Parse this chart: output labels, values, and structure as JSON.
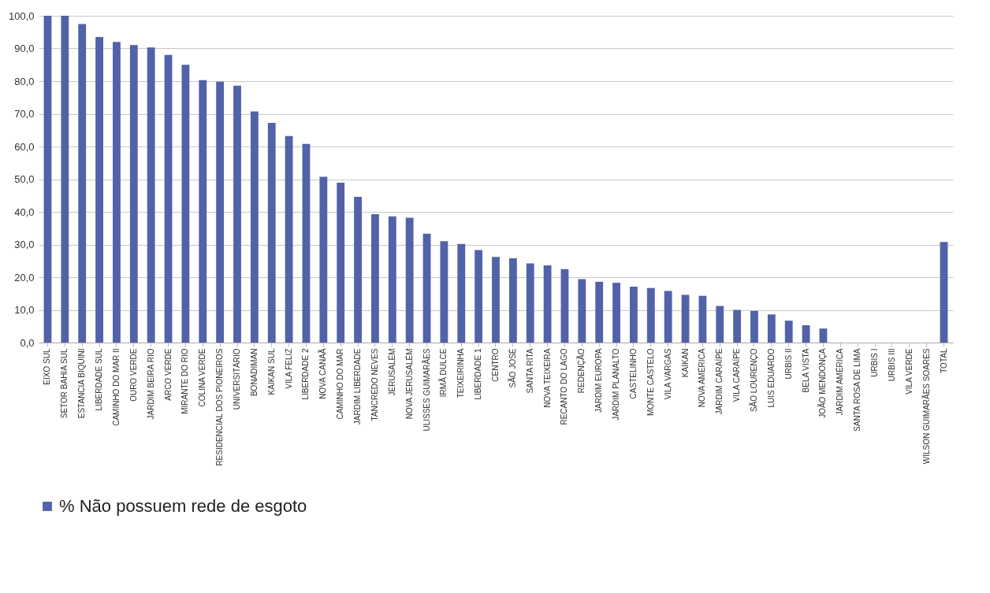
{
  "chart_data": {
    "type": "bar",
    "categories": [
      "EIXO SUL",
      "SETOR BAHIA SUL",
      "ESTANCIA BIQUINI",
      "LIBERDADE SUL",
      "CAMINHO DO MAR II",
      "OURO VERDE",
      "JARDIM BEIRA RIO",
      "ARCO VERDE",
      "MIRANTE DO RIO",
      "COLINA VERDE",
      "RESIDENCIAL DOS PIONEIROS",
      "UNIVERSITÁRIO",
      "BONADIMAN",
      "KAIKAN SUL",
      "VILA FELIZ",
      "LIBERDADE 2",
      "NOVA CANAÃ",
      "CAMINHO DO MAR",
      "JARDIM LIBERDADE",
      "TANCREDO NEVES",
      "JERUSALÉM",
      "NOVA JERUSALÉM",
      "ULISSES GUIMARÃES",
      "IRMÃ DULCE",
      "TEIXEIRINHA",
      "LIBERDADE 1",
      "CENTRO",
      "SÃO JOSÉ",
      "SANTA RITA",
      "NOVA TEIXEIRA",
      "RECANTO DO LAGO",
      "REDENÇÃO",
      "JARDIM EUROPA",
      "JARDIM PLANALTO",
      "CASTELINHO",
      "MONTE CASTELO",
      "VILA VARGAS",
      "KAIKAN",
      "NOVA AMÉRICA",
      "JARDIM CARAÍPE",
      "VILA CARAÍPE",
      "SÃO LOURENÇO",
      "LUIS EDUARDO",
      "URBIS II",
      "BELA VISTA",
      "JOÃO MENDONÇA",
      "JARDIM AMÉRICA",
      "SANTA ROSA DE LIMA",
      "URBIS I",
      "URBIS III",
      "VILA VERDE",
      "WILSON GUIMARÃES SOARES",
      "TOTAL"
    ],
    "series": [
      {
        "name": "% Não possuem rede de esgoto",
        "color": "#5262a9",
        "values": [
          100,
          100,
          97.5,
          93.5,
          92,
          91,
          90.3,
          88,
          85,
          80.3,
          79.8,
          78.6,
          70.7,
          67.2,
          63.2,
          60.8,
          50.7,
          48.9,
          44.6,
          39.3,
          38.6,
          38.2,
          33.3,
          31,
          30.2,
          28.3,
          26.2,
          25.8,
          24.2,
          23.6,
          22.5,
          19.4,
          18.6,
          18.3,
          17.1,
          16.7,
          15.8,
          14.6,
          14.3,
          11.2,
          10,
          9.7,
          8.6,
          6.7,
          5.3,
          4.3,
          0,
          0,
          0,
          0,
          0,
          0,
          30.8
        ]
      }
    ],
    "ylim": [
      0,
      100
    ],
    "yticks": [
      {
        "value": 0,
        "label": "0,0"
      },
      {
        "value": 10,
        "label": "10,0"
      },
      {
        "value": 20,
        "label": "20,0"
      },
      {
        "value": 30,
        "label": "30,0"
      },
      {
        "value": 40,
        "label": "40,0"
      },
      {
        "value": 50,
        "label": "50,0"
      },
      {
        "value": 60,
        "label": "60,0"
      },
      {
        "value": 70,
        "label": "70,0"
      },
      {
        "value": 80,
        "label": "80,0"
      },
      {
        "value": 90,
        "label": "90,0"
      },
      {
        "value": 100,
        "label": "100,0"
      }
    ],
    "grid": "y",
    "legend": "bottom"
  }
}
